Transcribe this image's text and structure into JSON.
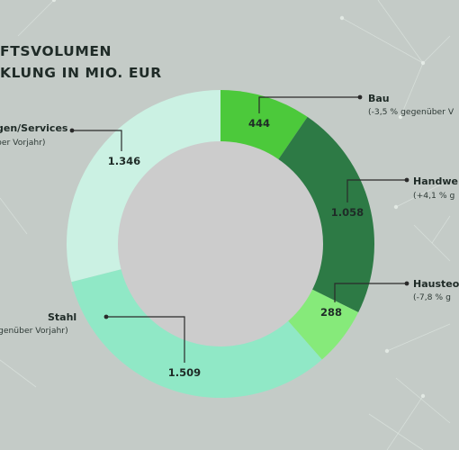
{
  "header": {
    "title_line1": "FTSVOLUMEN",
    "title_line2": "KLUNG IN MIO. EUR"
  },
  "colors": {
    "background": "#c4cbc7",
    "hole": "#cccccc",
    "leader_line": "#2a2a2a"
  },
  "chart_data": {
    "type": "pie",
    "donut": true,
    "start": "12 o'clock",
    "direction": "clockwise",
    "series": [
      {
        "name": "Bau",
        "value": 444,
        "value_label": "444",
        "note": "(-3,5 % gegenüber V",
        "color": "#4cc93b"
      },
      {
        "name": "Handwe",
        "value": 1058,
        "value_label": "1.058",
        "note": "(+4,1 % g",
        "color": "#2d7a45"
      },
      {
        "name": "Hausteo",
        "value": 288,
        "value_label": "288",
        "note": "(-7,8 % g",
        "color": "#86ea7a"
      },
      {
        "name": "Stahl",
        "value": 1509,
        "value_label": "1.509",
        "note": "genüber Vorjahr)",
        "color": "#90e8c6"
      },
      {
        "name": "gen/Services",
        "value": 1346,
        "value_label": "1.346",
        "note": "ber Vorjahr)",
        "color": "#cbf1e3"
      }
    ]
  }
}
